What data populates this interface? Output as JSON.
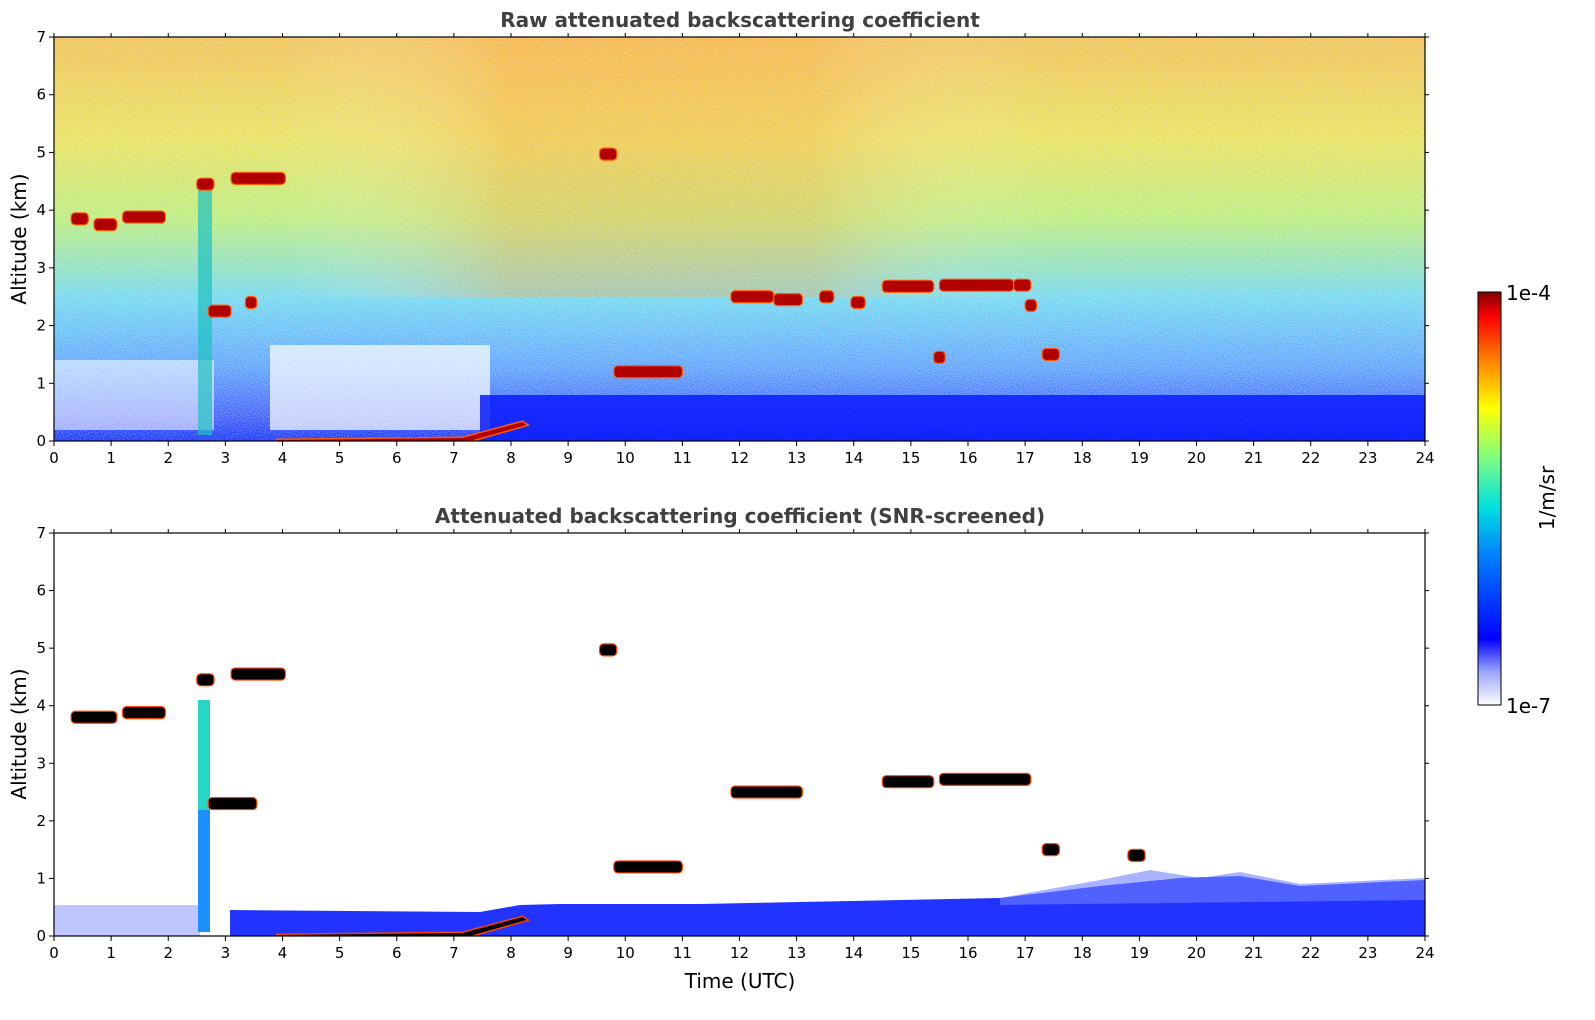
{
  "figure": {
    "colorbar": {
      "label": "1/m/sr",
      "max_label": "1e-4",
      "min_label": "1e-7",
      "scale": "log",
      "colormap": "jet (white at low end)"
    }
  },
  "chart_data": [
    {
      "type": "heatmap",
      "title": "Raw attenuated backscattering coefficient",
      "xlabel": "",
      "ylabel": "Altitude (km)",
      "xlim": [
        0,
        24
      ],
      "ylim": [
        0,
        7
      ],
      "x_ticks": [
        "0",
        "1",
        "2",
        "3",
        "4",
        "5",
        "6",
        "7",
        "8",
        "9",
        "10",
        "11",
        "12",
        "13",
        "14",
        "15",
        "16",
        "17",
        "18",
        "19",
        "20",
        "21",
        "22",
        "23",
        "24"
      ],
      "y_ticks": [
        "0",
        "1",
        "2",
        "3",
        "4",
        "5",
        "6",
        "7"
      ],
      "features": [
        {
          "kind": "cloud",
          "t0": 0.3,
          "t1": 0.6,
          "alt": 3.85
        },
        {
          "kind": "cloud",
          "t0": 0.7,
          "t1": 1.1,
          "alt": 3.75
        },
        {
          "kind": "cloud",
          "t0": 1.2,
          "t1": 1.95,
          "alt": 3.88
        },
        {
          "kind": "cloud",
          "t0": 2.5,
          "t1": 2.8,
          "alt": 4.45
        },
        {
          "kind": "cloud",
          "t0": 3.1,
          "t1": 4.05,
          "alt": 4.55
        },
        {
          "kind": "cloud",
          "t0": 2.7,
          "t1": 3.1,
          "alt": 2.25
        },
        {
          "kind": "cloud",
          "t0": 3.35,
          "t1": 3.55,
          "alt": 2.4
        },
        {
          "kind": "cloud",
          "t0": 9.55,
          "t1": 9.85,
          "alt": 4.97
        },
        {
          "kind": "cloud",
          "t0": 11.85,
          "t1": 12.6,
          "alt": 2.5
        },
        {
          "kind": "cloud",
          "t0": 12.6,
          "t1": 13.1,
          "alt": 2.45
        },
        {
          "kind": "cloud",
          "t0": 13.4,
          "t1": 13.65,
          "alt": 2.5
        },
        {
          "kind": "cloud",
          "t0": 13.95,
          "t1": 14.2,
          "alt": 2.4
        },
        {
          "kind": "cloud",
          "t0": 14.5,
          "t1": 15.4,
          "alt": 2.68
        },
        {
          "kind": "cloud",
          "t0": 15.5,
          "t1": 16.8,
          "alt": 2.7
        },
        {
          "kind": "cloud",
          "t0": 16.8,
          "t1": 17.1,
          "alt": 2.7
        },
        {
          "kind": "cloud",
          "t0": 17.0,
          "t1": 17.2,
          "alt": 2.35
        },
        {
          "kind": "cloud",
          "t0": 9.8,
          "t1": 11.0,
          "alt": 1.2
        },
        {
          "kind": "cloud",
          "t0": 15.4,
          "t1": 15.6,
          "alt": 1.45
        },
        {
          "kind": "cloud",
          "t0": 17.3,
          "t1": 17.6,
          "alt": 1.5
        },
        {
          "kind": "aerosol_layer",
          "t0": 3.9,
          "t1": 8.2,
          "alt": 0.1
        }
      ]
    },
    {
      "type": "heatmap",
      "title": "Attenuated backscattering coefficient (SNR-screened)",
      "xlabel": "Time (UTC)",
      "ylabel": "Altitude (km)",
      "xlim": [
        0,
        24
      ],
      "ylim": [
        0,
        7
      ],
      "x_ticks": [
        "0",
        "1",
        "2",
        "3",
        "4",
        "5",
        "6",
        "7",
        "8",
        "9",
        "10",
        "11",
        "12",
        "13",
        "14",
        "15",
        "16",
        "17",
        "18",
        "19",
        "20",
        "21",
        "22",
        "23",
        "24"
      ],
      "y_ticks": [
        "0",
        "1",
        "2",
        "3",
        "4",
        "5",
        "6",
        "7"
      ],
      "features": [
        {
          "kind": "cloud",
          "t0": 0.3,
          "t1": 1.1,
          "alt": 3.8
        },
        {
          "kind": "cloud",
          "t0": 1.2,
          "t1": 1.95,
          "alt": 3.88
        },
        {
          "kind": "cloud",
          "t0": 2.5,
          "t1": 2.8,
          "alt": 4.45
        },
        {
          "kind": "cloud",
          "t0": 3.1,
          "t1": 4.05,
          "alt": 4.55
        },
        {
          "kind": "cloud",
          "t0": 2.7,
          "t1": 3.55,
          "alt": 2.3
        },
        {
          "kind": "cloud",
          "t0": 9.55,
          "t1": 9.85,
          "alt": 4.97
        },
        {
          "kind": "cloud",
          "t0": 11.85,
          "t1": 13.1,
          "alt": 2.5
        },
        {
          "kind": "cloud",
          "t0": 14.5,
          "t1": 15.4,
          "alt": 2.68
        },
        {
          "kind": "cloud",
          "t0": 15.5,
          "t1": 17.1,
          "alt": 2.72
        },
        {
          "kind": "cloud",
          "t0": 9.8,
          "t1": 11.0,
          "alt": 1.2
        },
        {
          "kind": "cloud",
          "t0": 17.3,
          "t1": 17.6,
          "alt": 1.5
        },
        {
          "kind": "cloud",
          "t0": 18.8,
          "t1": 19.1,
          "alt": 1.4
        },
        {
          "kind": "aerosol_layer",
          "t0": 3.9,
          "t1": 8.2,
          "alt": 0.1
        }
      ]
    }
  ]
}
